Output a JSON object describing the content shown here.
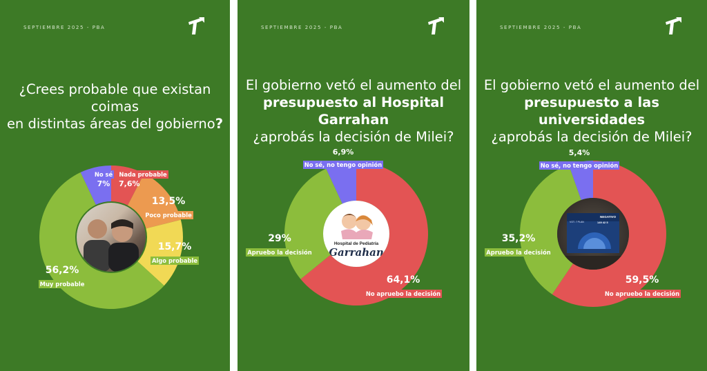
{
  "panels": [
    {
      "header": "SEPTIEMBRE 2025 - PBA",
      "question": {
        "line1": "¿Crees probable que existan coimas",
        "line2_regular": "en distintas áreas del gobierno",
        "line2_bold": "?"
      },
      "center_image": "photo-two-men"
    },
    {
      "header": "SEPTIEMBRE 2025 - PBA",
      "question": {
        "line1": "El gobierno vetó el aumento del",
        "line2_bold": "presupuesto al Hospital Garrahan",
        "line3": "¿aprobás la decisión de Milei?"
      },
      "center_image": "hospital-garrahan-logo",
      "center_logo_text": {
        "line1": "Hospital de Pediatría",
        "line2": "Garrahan"
      }
    },
    {
      "header": "SEPTIEMBRE 2025 - PBA",
      "question": {
        "line1": "El gobierno vetó el aumento del",
        "line2_bold": "presupuesto a las universidades",
        "line3": "¿aprobás la decisión de Milei?"
      },
      "center_image": "congress-vote-screen-photo",
      "center_screen_text": {
        "title": "NEGATIVO",
        "left": "VOT. 7 PLAN",
        "numbers": "149  42  5"
      }
    }
  ],
  "chart_data": [
    {
      "type": "pie",
      "donut": true,
      "slices": [
        {
          "label": "Muy probable",
          "display": "56,2%",
          "value": 56.2,
          "color": "#8cbd3c"
        },
        {
          "label": "No sé",
          "display": "7%",
          "value": 7.0,
          "color": "#7a6ff0"
        },
        {
          "label": "Nada probable",
          "display": "7,6%",
          "value": 7.6,
          "color": "#e35454"
        },
        {
          "label": "Poco probable",
          "display": "13,5%",
          "value": 13.5,
          "color": "#ec9a50"
        },
        {
          "label": "Algo probable",
          "display": "15,7%",
          "value": 15.7,
          "color": "#f1d955"
        }
      ]
    },
    {
      "type": "pie",
      "donut": true,
      "slices": [
        {
          "label": "No apruebo la decisión",
          "display": "64,1%",
          "value": 64.1,
          "color": "#e35454"
        },
        {
          "label": "Apruebo la decisión",
          "display": "29%",
          "value": 29.0,
          "color": "#8cbd3c"
        },
        {
          "label": "No sé, no tengo opinión",
          "display": "6,9%",
          "value": 6.9,
          "color": "#7a6ff0"
        }
      ]
    },
    {
      "type": "pie",
      "donut": true,
      "slices": [
        {
          "label": "No apruebo la decisión",
          "display": "59,5%",
          "value": 59.5,
          "color": "#e35454"
        },
        {
          "label": "Apruebo la decisión",
          "display": "35,2%",
          "value": 35.2,
          "color": "#8cbd3c"
        },
        {
          "label": "No sé, no tengo opinión",
          "display": "5,4%",
          "value": 5.4,
          "color": "#7a6ff0"
        }
      ]
    }
  ],
  "colors": {
    "background": "#3d7a26",
    "text": "#ffffff"
  }
}
